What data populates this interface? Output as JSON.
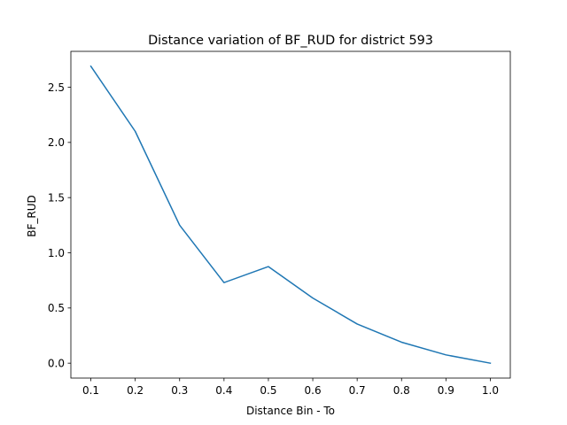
{
  "chart_data": {
    "type": "line",
    "title": "Distance variation of BF_RUD for district 593",
    "xlabel": "Distance Bin - To",
    "ylabel": "BF_RUD",
    "x": [
      0.1,
      0.2,
      0.3,
      0.4,
      0.5,
      0.6,
      0.7,
      0.8,
      0.9,
      1.0
    ],
    "series": [
      {
        "values": [
          2.69,
          2.1,
          1.25,
          0.73,
          0.875,
          0.59,
          0.355,
          0.19,
          0.075,
          0.0
        ]
      }
    ],
    "xlim": [
      0.055,
      1.045
    ],
    "ylim": [
      -0.135,
      2.825
    ],
    "xticks": [
      0.1,
      0.2,
      0.3,
      0.4,
      0.5,
      0.6,
      0.7,
      0.8,
      0.9,
      1.0
    ],
    "xtick_labels": [
      "0.1",
      "0.2",
      "0.3",
      "0.4",
      "0.5",
      "0.6",
      "0.7",
      "0.8",
      "0.9",
      "1.0"
    ],
    "yticks": [
      0.0,
      0.5,
      1.0,
      1.5,
      2.0,
      2.5
    ],
    "ytick_labels": [
      "0.0",
      "0.5",
      "1.0",
      "1.5",
      "2.0",
      "2.5"
    ],
    "grid": false,
    "legend": "none",
    "line_color": "#1f77b4"
  }
}
